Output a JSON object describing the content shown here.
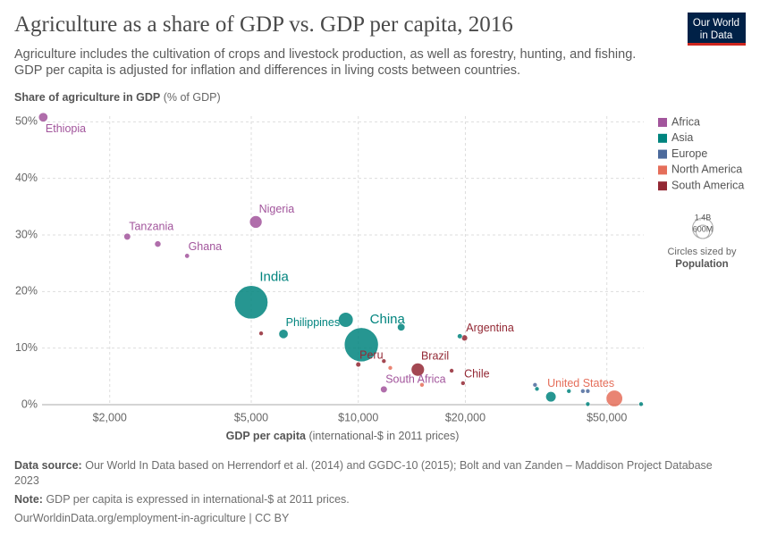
{
  "header": {
    "title": "Agriculture as a share of GDP vs. GDP per capita, 2016",
    "subtitle": "Agriculture includes the cultivation of crops and livestock production, as well as forestry, hunting, and fishing. GDP per capita is adjusted for inflation and differences in living costs between countries.",
    "logo": [
      "Our World",
      "in Data"
    ]
  },
  "chart_data": {
    "type": "scatter",
    "y_label": "Share of agriculture in GDP",
    "y_unit": "(% of GDP)",
    "x_label": "GDP per capita",
    "x_unit": "(international-$ in 2011 prices)",
    "log_x": true,
    "grid": true,
    "legend_position": "right",
    "xlim": [
      1290,
      63500
    ],
    "ylim": [
      0,
      51
    ],
    "xticks": [
      {
        "value": 2000,
        "label": "$2,000"
      },
      {
        "value": 5000,
        "label": "$5,000"
      },
      {
        "value": 10000,
        "label": "$10,000"
      },
      {
        "value": 20000,
        "label": "$20,000"
      },
      {
        "value": 50000,
        "label": "$50,000"
      }
    ],
    "yticks": [
      {
        "value": 0,
        "label": "0%"
      },
      {
        "value": 10,
        "label": "10%"
      },
      {
        "value": 20,
        "label": "20%"
      },
      {
        "value": 30,
        "label": "30%"
      },
      {
        "value": 40,
        "label": "40%"
      },
      {
        "value": 50,
        "label": "50%"
      }
    ],
    "series": [
      {
        "name": "Africa",
        "color": "#a2559c",
        "x": [
          1300,
          2240,
          2730,
          3300,
          5150,
          11800
        ],
        "values": [
          50.8,
          29.7,
          28.4,
          26.3,
          32.3,
          2.7
        ],
        "sizes": [
          103000000,
          55000000,
          48000000,
          28000000,
          186000000,
          56000000
        ],
        "labels": [
          "Ethiopia",
          "Tanzania",
          null,
          "Ghana",
          "Nigeria",
          "South Africa"
        ]
      },
      {
        "name": "Asia",
        "color": "#00847e",
        "x": [
          5000,
          6160,
          10200,
          9220,
          13200,
          19300,
          31800,
          34800,
          39100,
          44200,
          62400
        ],
        "values": [
          18.1,
          12.5,
          10.6,
          15.0,
          13.7,
          12.1,
          2.8,
          1.4,
          2.4,
          0.1,
          0.1
        ],
        "sizes": [
          1324000000,
          103000000,
          1379000000,
          261000000,
          68000000,
          31000000,
          5600000,
          127000000,
          8000000,
          5000000,
          2600000
        ],
        "labels": [
          "India",
          "Philippines",
          "China",
          null,
          null,
          null,
          null,
          null,
          null,
          null,
          null
        ]
      },
      {
        "name": "Europe",
        "color": "#4c6a9c",
        "x": [
          31400,
          42800,
          44200
        ],
        "values": [
          3.5,
          2.4,
          2.4
        ],
        "sizes": [
          10000000,
          10000000,
          8000000
        ],
        "labels": [
          null,
          null,
          null
        ]
      },
      {
        "name": "North America",
        "color": "#e56e5a",
        "x": [
          52500,
          12300,
          15100
        ],
        "values": [
          1.1,
          6.5,
          3.5
        ],
        "sizes": [
          323000000,
          5000000,
          10000000
        ],
        "labels": [
          "United States",
          null,
          null
        ]
      },
      {
        "name": "South America",
        "color": "#932834",
        "x": [
          19900,
          14700,
          10000,
          19700,
          18300,
          11800,
          5330
        ],
        "values": [
          11.8,
          6.2,
          7.1,
          3.8,
          6.0,
          7.7,
          12.6
        ],
        "sizes": [
          44000000,
          206000000,
          31000000,
          18000000,
          3400000,
          7000000,
          6000000
        ],
        "labels": [
          "Argentina",
          "Brazil",
          "Peru",
          "Chile",
          null,
          null,
          null
        ]
      }
    ],
    "size_legend": {
      "title": "Circles sized by",
      "variable": "Population",
      "values": [
        {
          "value": 1400000000,
          "label": "1.4B"
        },
        {
          "value": 600000000,
          "label": "600M"
        }
      ]
    }
  },
  "footer": {
    "source_label": "Data source:",
    "source": "Our World In Data based on Herrendorf et al. (2014) and GGDC-10 (2015); Bolt and van Zanden – Maddison Project Database 2023",
    "note_label": "Note:",
    "note": "GDP per capita is expressed in international-$ at 2011 prices.",
    "url": "OurWorldinData.org/employment-in-agriculture | CC BY"
  }
}
